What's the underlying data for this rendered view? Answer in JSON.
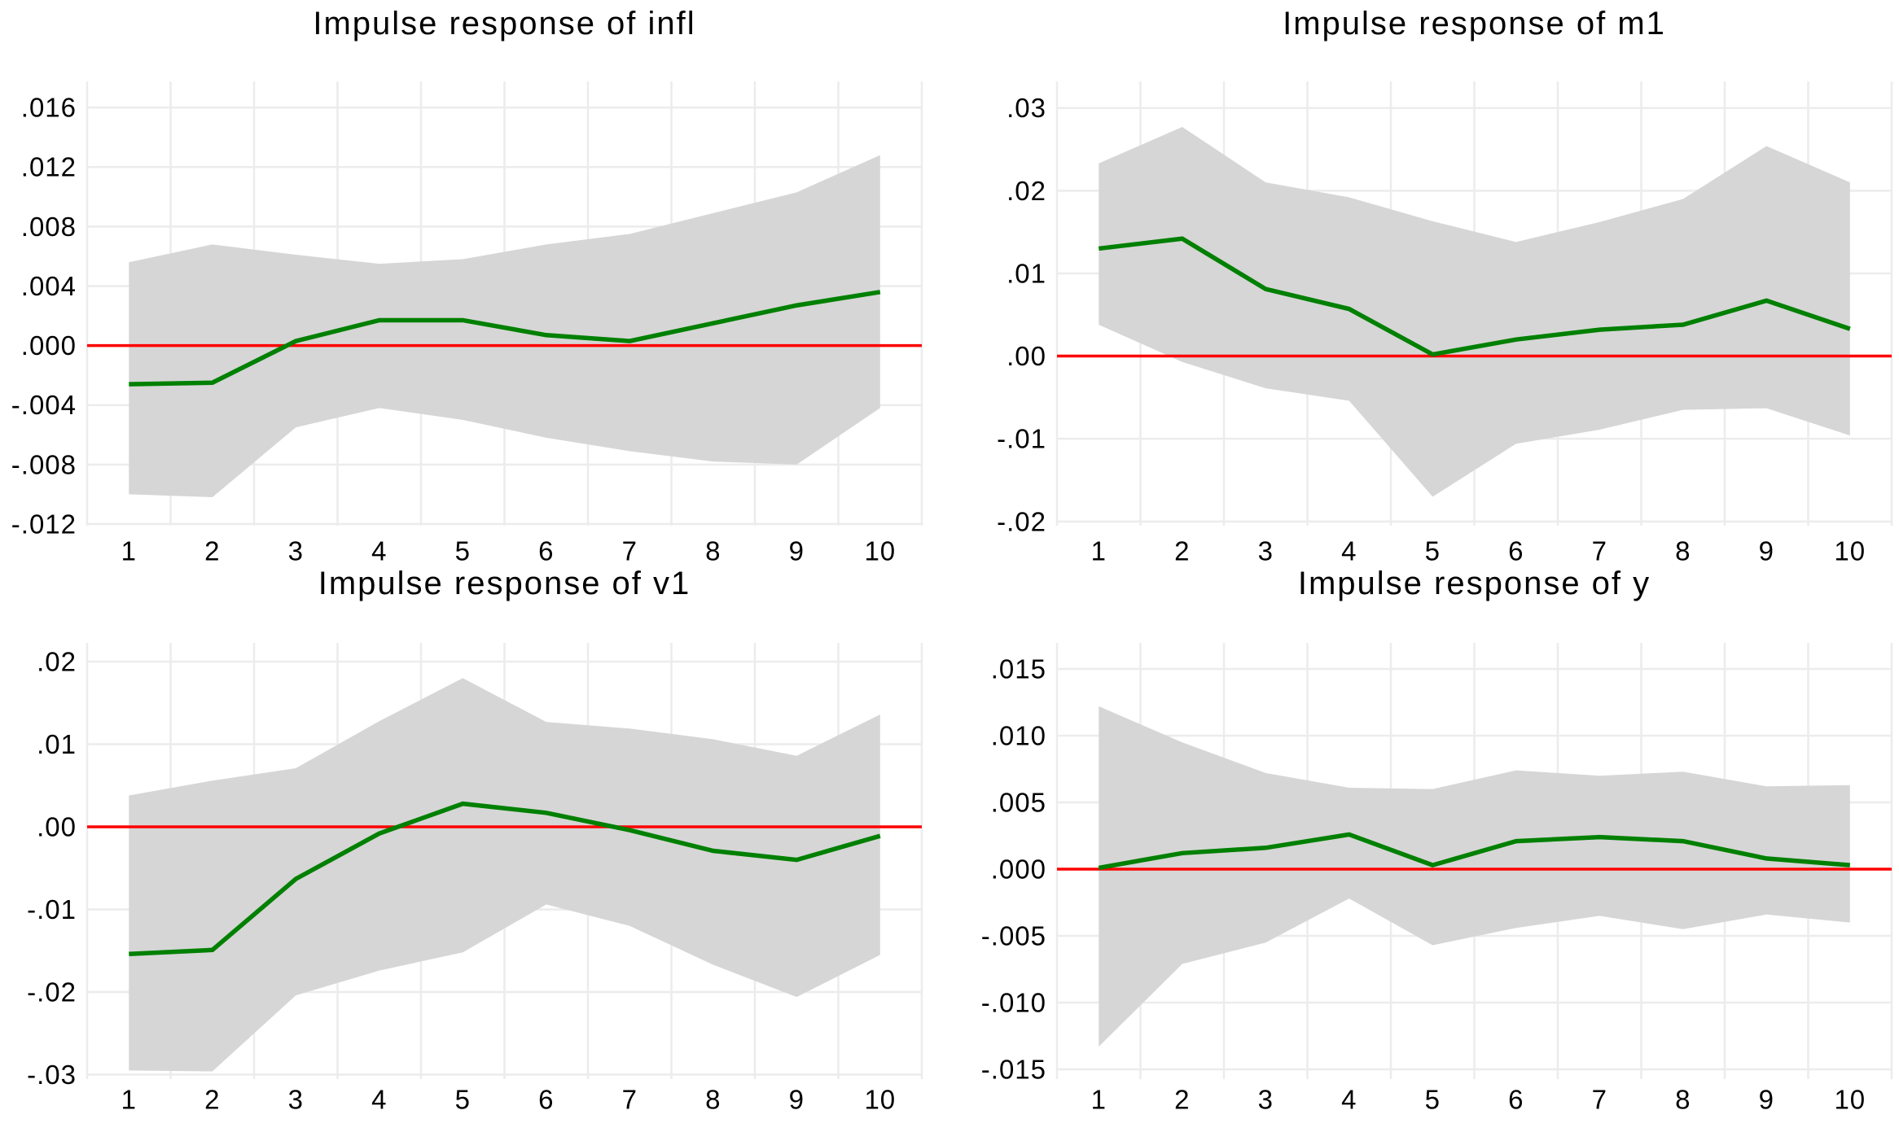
{
  "style": {
    "background": "#ffffff",
    "irf_line_green": "#008000",
    "zero_line_red": "#ff0000",
    "confidence_band_gray": "#d6d6d6",
    "gridline_gray": "#ececec",
    "text_color": "#000000"
  },
  "chart_data": [
    {
      "id": "infl",
      "type": "line",
      "title": "Impulse response of infl",
      "xlabel": "",
      "ylabel": "",
      "x": [
        1,
        2,
        3,
        4,
        5,
        6,
        7,
        8,
        9,
        10
      ],
      "x_tick_labels": [
        "1",
        "2",
        "3",
        "4",
        "5",
        "6",
        "7",
        "8",
        "9",
        "10"
      ],
      "y_tick_labels": [
        ".016",
        ".012",
        ".008",
        ".004",
        ".000",
        "-.004",
        "-.008",
        "-.012"
      ],
      "y_tick_values": [
        0.016,
        0.012,
        0.008,
        0.004,
        0.0,
        -0.004,
        -0.008,
        -0.012
      ],
      "ylim": [
        -0.01211,
        0.01775
      ],
      "zero_line": 0,
      "grid": true,
      "legend_position": "none",
      "series": [
        {
          "name": "impulse response estimate",
          "role": "line",
          "values": [
            -0.0026,
            -0.0025,
            0.0003,
            0.0017,
            0.0017,
            0.0007,
            0.0003,
            0.0015,
            0.0027,
            0.0036
          ]
        },
        {
          "name": "confidence band upper",
          "role": "band-upper",
          "values": [
            0.0056,
            0.0068,
            0.0061,
            0.0055,
            0.0058,
            0.0068,
            0.0075,
            0.0089,
            0.0103,
            0.0128
          ]
        },
        {
          "name": "confidence band lower",
          "role": "band-lower",
          "values": [
            -0.01,
            -0.0102,
            -0.0055,
            -0.0042,
            -0.005,
            -0.0062,
            -0.0071,
            -0.0078,
            -0.008,
            -0.0042
          ]
        }
      ]
    },
    {
      "id": "m1",
      "type": "line",
      "title": "Impulse response of m1",
      "xlabel": "",
      "ylabel": "",
      "x": [
        1,
        2,
        3,
        4,
        5,
        6,
        7,
        8,
        9,
        10
      ],
      "x_tick_labels": [
        "1",
        "2",
        "3",
        "4",
        "5",
        "6",
        "7",
        "8",
        "9",
        "10"
      ],
      "y_tick_labels": [
        ".03",
        ".02",
        ".01",
        ".00",
        "-.01",
        "-.02"
      ],
      "y_tick_values": [
        0.03,
        0.02,
        0.01,
        0.0,
        -0.01,
        -0.02
      ],
      "ylim": [
        -0.0205,
        0.0332
      ],
      "zero_line": 0,
      "grid": true,
      "legend_position": "none",
      "series": [
        {
          "name": "impulse response estimate",
          "role": "line",
          "values": [
            0.013,
            0.0142,
            0.0081,
            0.0057,
            0.0002,
            0.002,
            0.0032,
            0.0038,
            0.0067,
            0.0033
          ]
        },
        {
          "name": "confidence band upper",
          "role": "band-upper",
          "values": [
            0.0233,
            0.0277,
            0.021,
            0.0192,
            0.0163,
            0.0138,
            0.0162,
            0.019,
            0.0254,
            0.021
          ]
        },
        {
          "name": "confidence band lower",
          "role": "band-lower",
          "values": [
            0.0038,
            -0.0007,
            -0.0039,
            -0.0054,
            -0.017,
            -0.0106,
            -0.0089,
            -0.0065,
            -0.0063,
            -0.0096
          ]
        }
      ]
    },
    {
      "id": "v1",
      "type": "line",
      "title": "Impulse response of v1",
      "xlabel": "",
      "ylabel": "",
      "x": [
        1,
        2,
        3,
        4,
        5,
        6,
        7,
        8,
        9,
        10
      ],
      "x_tick_labels": [
        "1",
        "2",
        "3",
        "4",
        "5",
        "6",
        "7",
        "8",
        "9",
        "10"
      ],
      "y_tick_labels": [
        ".02",
        ".01",
        ".00",
        "-.01",
        "-.02",
        "-.03"
      ],
      "y_tick_values": [
        0.02,
        0.01,
        0.0,
        -0.01,
        -0.02,
        -0.03
      ],
      "ylim": [
        -0.03054,
        0.02227
      ],
      "zero_line": 0,
      "grid": true,
      "legend_position": "none",
      "series": [
        {
          "name": "impulse response estimate",
          "role": "line",
          "values": [
            -0.0154,
            -0.0149,
            -0.0063,
            -0.0008,
            0.0028,
            0.0017,
            -0.0004,
            -0.0029,
            -0.004,
            -0.0011
          ]
        },
        {
          "name": "confidence band upper",
          "role": "band-upper",
          "values": [
            0.0038,
            0.0056,
            0.0071,
            0.0128,
            0.018,
            0.0127,
            0.0119,
            0.0106,
            0.0086,
            0.0136
          ]
        },
        {
          "name": "confidence band lower",
          "role": "band-lower",
          "values": [
            -0.0295,
            -0.0296,
            -0.0204,
            -0.0174,
            -0.0152,
            -0.0094,
            -0.012,
            -0.0167,
            -0.0206,
            -0.0155
          ]
        }
      ]
    },
    {
      "id": "y",
      "type": "line",
      "title": "Impulse response of y",
      "xlabel": "",
      "ylabel": "",
      "x": [
        1,
        2,
        3,
        4,
        5,
        6,
        7,
        8,
        9,
        10
      ],
      "x_tick_labels": [
        "1",
        "2",
        "3",
        "4",
        "5",
        "6",
        "7",
        "8",
        "9",
        "10"
      ],
      "y_tick_labels": [
        ".015",
        ".010",
        ".005",
        ".000",
        "-.005",
        "-.010",
        "-.015"
      ],
      "y_tick_values": [
        0.015,
        0.01,
        0.005,
        0.0,
        -0.005,
        -0.01,
        -0.015
      ],
      "ylim": [
        -0.01573,
        0.01695
      ],
      "zero_line": 0,
      "grid": true,
      "legend_position": "none",
      "series": [
        {
          "name": "impulse response estimate",
          "role": "line",
          "values": [
            0.0001,
            0.0012,
            0.0016,
            0.0026,
            0.0003,
            0.0021,
            0.0024,
            0.0021,
            0.0008,
            0.0003
          ]
        },
        {
          "name": "confidence band upper",
          "role": "band-upper",
          "values": [
            0.0122,
            0.0095,
            0.0072,
            0.0061,
            0.006,
            0.0074,
            0.007,
            0.0073,
            0.0062,
            0.0063
          ]
        },
        {
          "name": "confidence band lower",
          "role": "band-lower",
          "values": [
            -0.0133,
            -0.0071,
            -0.0055,
            -0.0022,
            -0.0057,
            -0.0044,
            -0.0035,
            -0.0045,
            -0.0034,
            -0.004
          ]
        }
      ]
    }
  ]
}
